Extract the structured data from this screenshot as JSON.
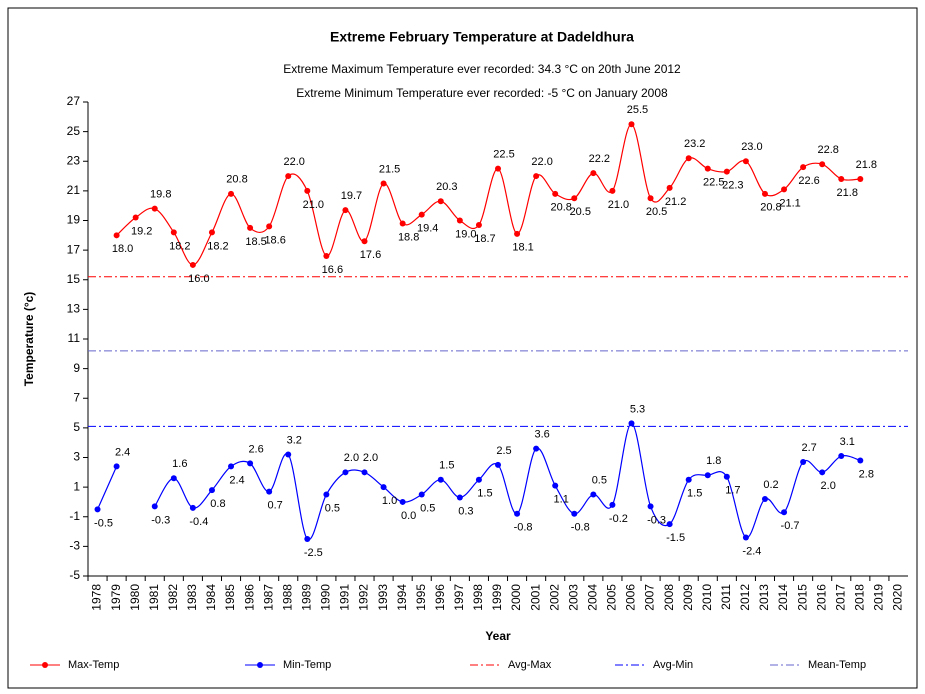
{
  "chart_data": {
    "type": "line",
    "title": "Extreme February Temperature at Dadeldhura",
    "subtitle": [
      "Extreme Maximum Temperature ever recorded: 34.3 °C on 20th June 2012",
      "Extreme Minimum Temperature ever recorded: -5 °C on January 2008"
    ],
    "x_label": "Year",
    "y_label": "Temperature (°c)",
    "categories": [
      "1978",
      "1979",
      "1980",
      "1981",
      "1982",
      "1983",
      "1984",
      "1985",
      "1986",
      "1987",
      "1988",
      "1989",
      "1990",
      "1991",
      "1992",
      "1993",
      "1994",
      "1995",
      "1996",
      "1997",
      "1998",
      "1999",
      "2000",
      "2001",
      "2002",
      "2003",
      "2004",
      "2005",
      "2006",
      "2007",
      "2008",
      "2009",
      "2010",
      "2011",
      "2012",
      "2013",
      "2014",
      "2015",
      "2016",
      "2017",
      "2018",
      "2019",
      "2020"
    ],
    "series": [
      {
        "name": "Max-Temp",
        "color": "#ff0000",
        "values": [
          null,
          18.0,
          19.2,
          19.8,
          18.2,
          16.0,
          18.2,
          20.8,
          18.5,
          18.6,
          22.0,
          21.0,
          16.6,
          19.7,
          17.6,
          21.5,
          18.8,
          19.4,
          20.3,
          19.0,
          18.7,
          22.5,
          18.1,
          22.0,
          20.8,
          20.5,
          22.2,
          21.0,
          25.5,
          20.5,
          21.2,
          23.2,
          22.5,
          22.3,
          23.0,
          20.8,
          21.1,
          22.6,
          22.8,
          21.8,
          21.8,
          null,
          null
        ],
        "value_labels": [
          null,
          "18.0",
          "19.2",
          "19.8",
          "18.2",
          "16.0",
          "18.2",
          "20.8",
          "18.5",
          "18.6",
          "22.0",
          "21.0",
          "16.6",
          "19.7",
          "17.6",
          "21.5",
          "18.8",
          "19.4",
          "20.3",
          "19.0",
          "18.7",
          "22.5",
          "18.1",
          "22.0",
          "20.8",
          "20.5",
          "22.2",
          "21.0",
          "25.5",
          "20.5",
          "21.2",
          "23.2",
          "22.5",
          "22.3",
          "23.0",
          "20.8",
          "21.1",
          "22.6",
          "22.8",
          "21.8",
          "21.8",
          null,
          null
        ]
      },
      {
        "name": "Min-Temp",
        "color": "#0000ff",
        "values": [
          -0.5,
          2.4,
          null,
          -0.3,
          1.6,
          -0.4,
          0.8,
          2.4,
          2.6,
          0.7,
          3.2,
          -2.5,
          0.5,
          2.0,
          2.0,
          1.0,
          0.0,
          0.5,
          1.5,
          0.3,
          1.5,
          2.5,
          -0.8,
          3.6,
          1.1,
          -0.8,
          0.5,
          -0.2,
          5.3,
          -0.3,
          -1.5,
          1.5,
          1.8,
          1.7,
          -2.4,
          0.2,
          -0.7,
          2.7,
          2.0,
          3.1,
          2.8,
          null,
          null
        ],
        "value_labels": [
          "-0.5",
          "2.4",
          null,
          "-0.3",
          "1.6",
          "-0.4",
          "0.8",
          "2.4",
          "2.6",
          "0.7",
          "3.2",
          "-2.5",
          "0.5",
          "2.0",
          "2.0",
          "1.0",
          "0.0",
          "0.5",
          "1.5",
          "0.3",
          "1.5",
          "2.5",
          "-0.8",
          "3.6",
          "1.1",
          "-0.8",
          "0.5",
          "-0.2",
          "5.3",
          "-0.3",
          "-1.5",
          "1.5",
          "1.8",
          "1.7",
          "-2.4",
          "0.2",
          "-0.7",
          "2.7",
          "2.0",
          "3.1",
          "2.8",
          null,
          null
        ]
      }
    ],
    "reference_lines": [
      {
        "name": "Avg-Max",
        "color": "#ff0000",
        "value": 15.2
      },
      {
        "name": "Avg-Min",
        "color": "#0000ff",
        "value": 5.1
      },
      {
        "name": "Mean-Temp",
        "color": "#6666cc",
        "value": 10.2
      }
    ],
    "ylim": [
      -5,
      27
    ],
    "yticks": [
      -5,
      -3,
      -1,
      1,
      3,
      5,
      7,
      9,
      11,
      13,
      15,
      17,
      19,
      21,
      23,
      25,
      27
    ],
    "grid": false,
    "legend": "bottom"
  }
}
